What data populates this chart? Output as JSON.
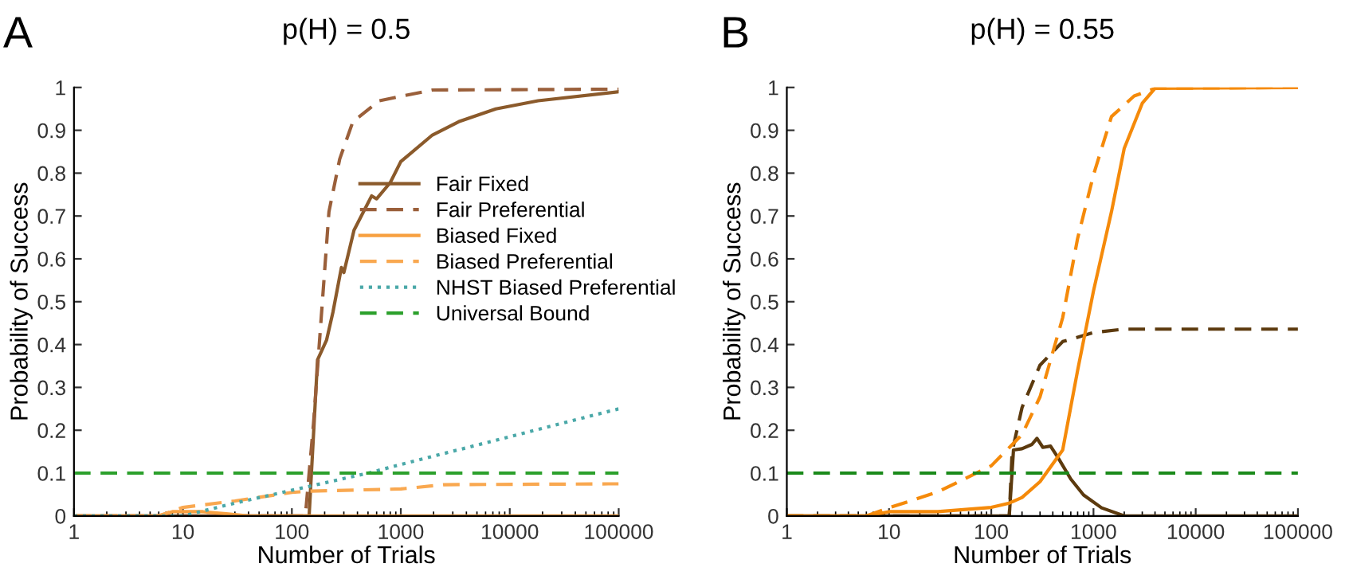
{
  "chart_data": [
    {
      "type": "line",
      "title": "p(H) = 0.5",
      "xlabel": "Number of Trials",
      "ylabel": "Probability of Success",
      "annotations": [
        "A"
      ],
      "log": "x",
      "legend": "center right",
      "xlim": [
        1,
        100000
      ],
      "ylim": [
        0,
        1
      ],
      "xticks": [
        1,
        10,
        100,
        1000,
        10000,
        100000
      ],
      "yticks": [
        0,
        0.1,
        0.2,
        0.3,
        0.4,
        0.5,
        0.6,
        0.7,
        0.8,
        0.9,
        1
      ],
      "series": [
        {
          "name": "Fair Fixed",
          "color": "#8b5a2b",
          "line_style": "solid",
          "x": [
            1,
            144,
            172,
            208,
            238,
            285,
            300,
            372,
            540,
            600,
            800,
            1000,
            1950,
            3400,
            7450,
            18200,
            100000
          ],
          "values": [
            0,
            0,
            0.364,
            0.41,
            0.475,
            0.58,
            0.568,
            0.667,
            0.747,
            0.74,
            0.778,
            0.827,
            0.889,
            0.92,
            0.95,
            0.969,
            0.99
          ]
        },
        {
          "name": "Fair Preferential",
          "color": "#9a5f3a",
          "line_style": "dashed",
          "x": [
            1,
            133,
            158,
            186,
            219,
            275,
            363,
            634,
            1950,
            100000
          ],
          "values": [
            0,
            0,
            0.216,
            0.463,
            0.71,
            0.833,
            0.92,
            0.969,
            0.994,
            0.996
          ]
        },
        {
          "name": "Biased Fixed",
          "color": "#f7a040",
          "line_style": "solid",
          "x": [
            1,
            6,
            8,
            15,
            25,
            40,
            100000
          ],
          "values": [
            0,
            0,
            0.01,
            0.01,
            0.005,
            0,
            0
          ]
        },
        {
          "name": "Biased Preferential",
          "color": "#f9a850",
          "line_style": "dashed",
          "x": [
            1,
            6,
            10,
            30,
            100,
            150,
            1000,
            2500,
            100000
          ],
          "values": [
            0,
            0,
            0.02,
            0.035,
            0.055,
            0.058,
            0.063,
            0.073,
            0.075
          ]
        },
        {
          "name": "NHST Biased Preferential",
          "color": "#4aa8a8",
          "line_style": "dotted",
          "x": [
            1,
            10,
            30,
            100,
            500,
            1000,
            10000,
            100000
          ],
          "values": [
            0,
            0,
            0.03,
            0.06,
            0.1,
            0.12,
            0.185,
            0.25
          ]
        },
        {
          "name": "Universal Bound",
          "color": "#2ca02c",
          "line_style": "dashed",
          "x": [
            1,
            100000
          ],
          "values": [
            0.1,
            0.1
          ]
        }
      ]
    },
    {
      "type": "line",
      "title": "p(H) = 0.55",
      "xlabel": "Number of Trials",
      "ylabel": "Probability of Success",
      "annotations": [
        "B"
      ],
      "log": "x",
      "xlim": [
        1,
        100000
      ],
      "ylim": [
        0,
        1
      ],
      "xticks": [
        1,
        10,
        100,
        1000,
        10000,
        100000
      ],
      "yticks": [
        0,
        0.1,
        0.2,
        0.3,
        0.4,
        0.5,
        0.6,
        0.7,
        0.8,
        0.9,
        1
      ],
      "series": [
        {
          "color": "#5c3a0e",
          "line_style": "solid",
          "x": [
            1,
            150,
            165,
            200,
            250,
            280,
            320,
            380,
            450,
            600,
            800,
            1200,
            2000,
            100000
          ],
          "values": [
            0,
            0,
            0.154,
            0.157,
            0.167,
            0.181,
            0.16,
            0.163,
            0.136,
            0.086,
            0.049,
            0.019,
            0,
            0
          ]
        },
        {
          "color": "#5c3a0e",
          "line_style": "dashed",
          "x": [
            1,
            150,
            160,
            200,
            300,
            500,
            1000,
            2000,
            100000
          ],
          "values": [
            0,
            0,
            0.15,
            0.253,
            0.352,
            0.407,
            0.428,
            0.436,
            0.436
          ]
        },
        {
          "color": "#f58a0a",
          "line_style": "solid",
          "x": [
            1,
            6,
            10,
            30,
            100,
            150,
            200,
            300,
            500,
            700,
            1000,
            1500,
            2000,
            3000,
            4000,
            100000
          ],
          "values": [
            0,
            0,
            0.01,
            0.01,
            0.02,
            0.03,
            0.043,
            0.08,
            0.154,
            0.34,
            0.525,
            0.71,
            0.858,
            0.963,
            0.998,
            1
          ]
        },
        {
          "color": "#f58a0a",
          "line_style": "dashed",
          "x": [
            1,
            6,
            10,
            30,
            100,
            200,
            300,
            500,
            700,
            1000,
            1500,
            2500,
            4000,
            100000
          ],
          "values": [
            0,
            0,
            0.019,
            0.056,
            0.117,
            0.19,
            0.278,
            0.463,
            0.648,
            0.796,
            0.932,
            0.98,
            0.998,
            1
          ]
        },
        {
          "color": "#1a8a1a",
          "line_style": "dashed",
          "x": [
            1,
            100000
          ],
          "values": [
            0.1,
            0.1
          ]
        }
      ]
    }
  ]
}
